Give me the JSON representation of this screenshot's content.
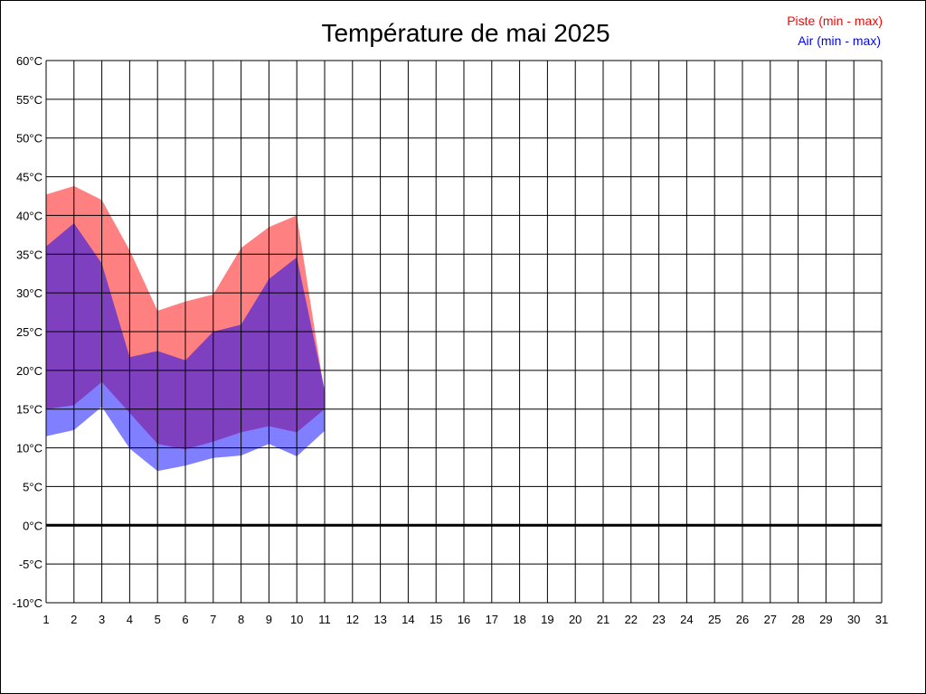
{
  "chart_data": {
    "type": "area",
    "title": "Température de mai 2025",
    "xlabel": "",
    "ylabel": "",
    "x": [
      1,
      2,
      3,
      4,
      5,
      6,
      7,
      8,
      9,
      10,
      11,
      12,
      13,
      14,
      15,
      16,
      17,
      18,
      19,
      20,
      21,
      22,
      23,
      24,
      25,
      26,
      27,
      28,
      29,
      30,
      31
    ],
    "x_tick_labels": [
      "1",
      "2",
      "3",
      "4",
      "5",
      "6",
      "7",
      "8",
      "9",
      "10",
      "11",
      "12",
      "13",
      "14",
      "15",
      "16",
      "17",
      "18",
      "19",
      "20",
      "21",
      "22",
      "23",
      "24",
      "25",
      "26",
      "27",
      "28",
      "29",
      "30",
      "31"
    ],
    "xlim": [
      1,
      31
    ],
    "ylim": [
      -10,
      60
    ],
    "y_ticks": [
      -10,
      -5,
      0,
      5,
      10,
      15,
      20,
      25,
      30,
      35,
      40,
      45,
      50,
      55,
      60
    ],
    "y_tick_labels": [
      "-10°C",
      "-5°C",
      "0°C",
      "5°C",
      "10°C",
      "15°C",
      "20°C",
      "25°C",
      "30°C",
      "35°C",
      "40°C",
      "45°C",
      "50°C",
      "55°C",
      "60°C"
    ],
    "grid": true,
    "zero_line": true,
    "legend_position": "top-right",
    "series": [
      {
        "name": "Piste (min - max)",
        "color": "#ff0000",
        "fill_color": "#ff8080",
        "x": [
          1,
          2,
          3,
          4,
          5,
          6,
          7,
          8,
          9,
          10,
          11
        ],
        "min": [
          15.0,
          15.5,
          18.5,
          14.5,
          10.5,
          9.8,
          10.8,
          12.0,
          12.8,
          12.0,
          15.0
        ],
        "max": [
          42.7,
          43.8,
          42.0,
          35.5,
          27.7,
          28.9,
          29.8,
          35.8,
          38.5,
          40.0,
          17.0
        ]
      },
      {
        "name": "Air (min - max)",
        "color": "#0000ff",
        "fill_color": "#0000ff",
        "x": [
          1,
          2,
          3,
          4,
          5,
          6,
          7,
          8,
          9,
          10,
          11
        ],
        "min": [
          11.5,
          12.3,
          15.3,
          9.9,
          7.0,
          7.7,
          8.7,
          9.0,
          10.5,
          8.9,
          12.2
        ],
        "max": [
          36.0,
          39.0,
          33.8,
          21.7,
          22.5,
          21.3,
          25.0,
          25.9,
          31.8,
          34.6,
          17.5
        ]
      }
    ]
  }
}
